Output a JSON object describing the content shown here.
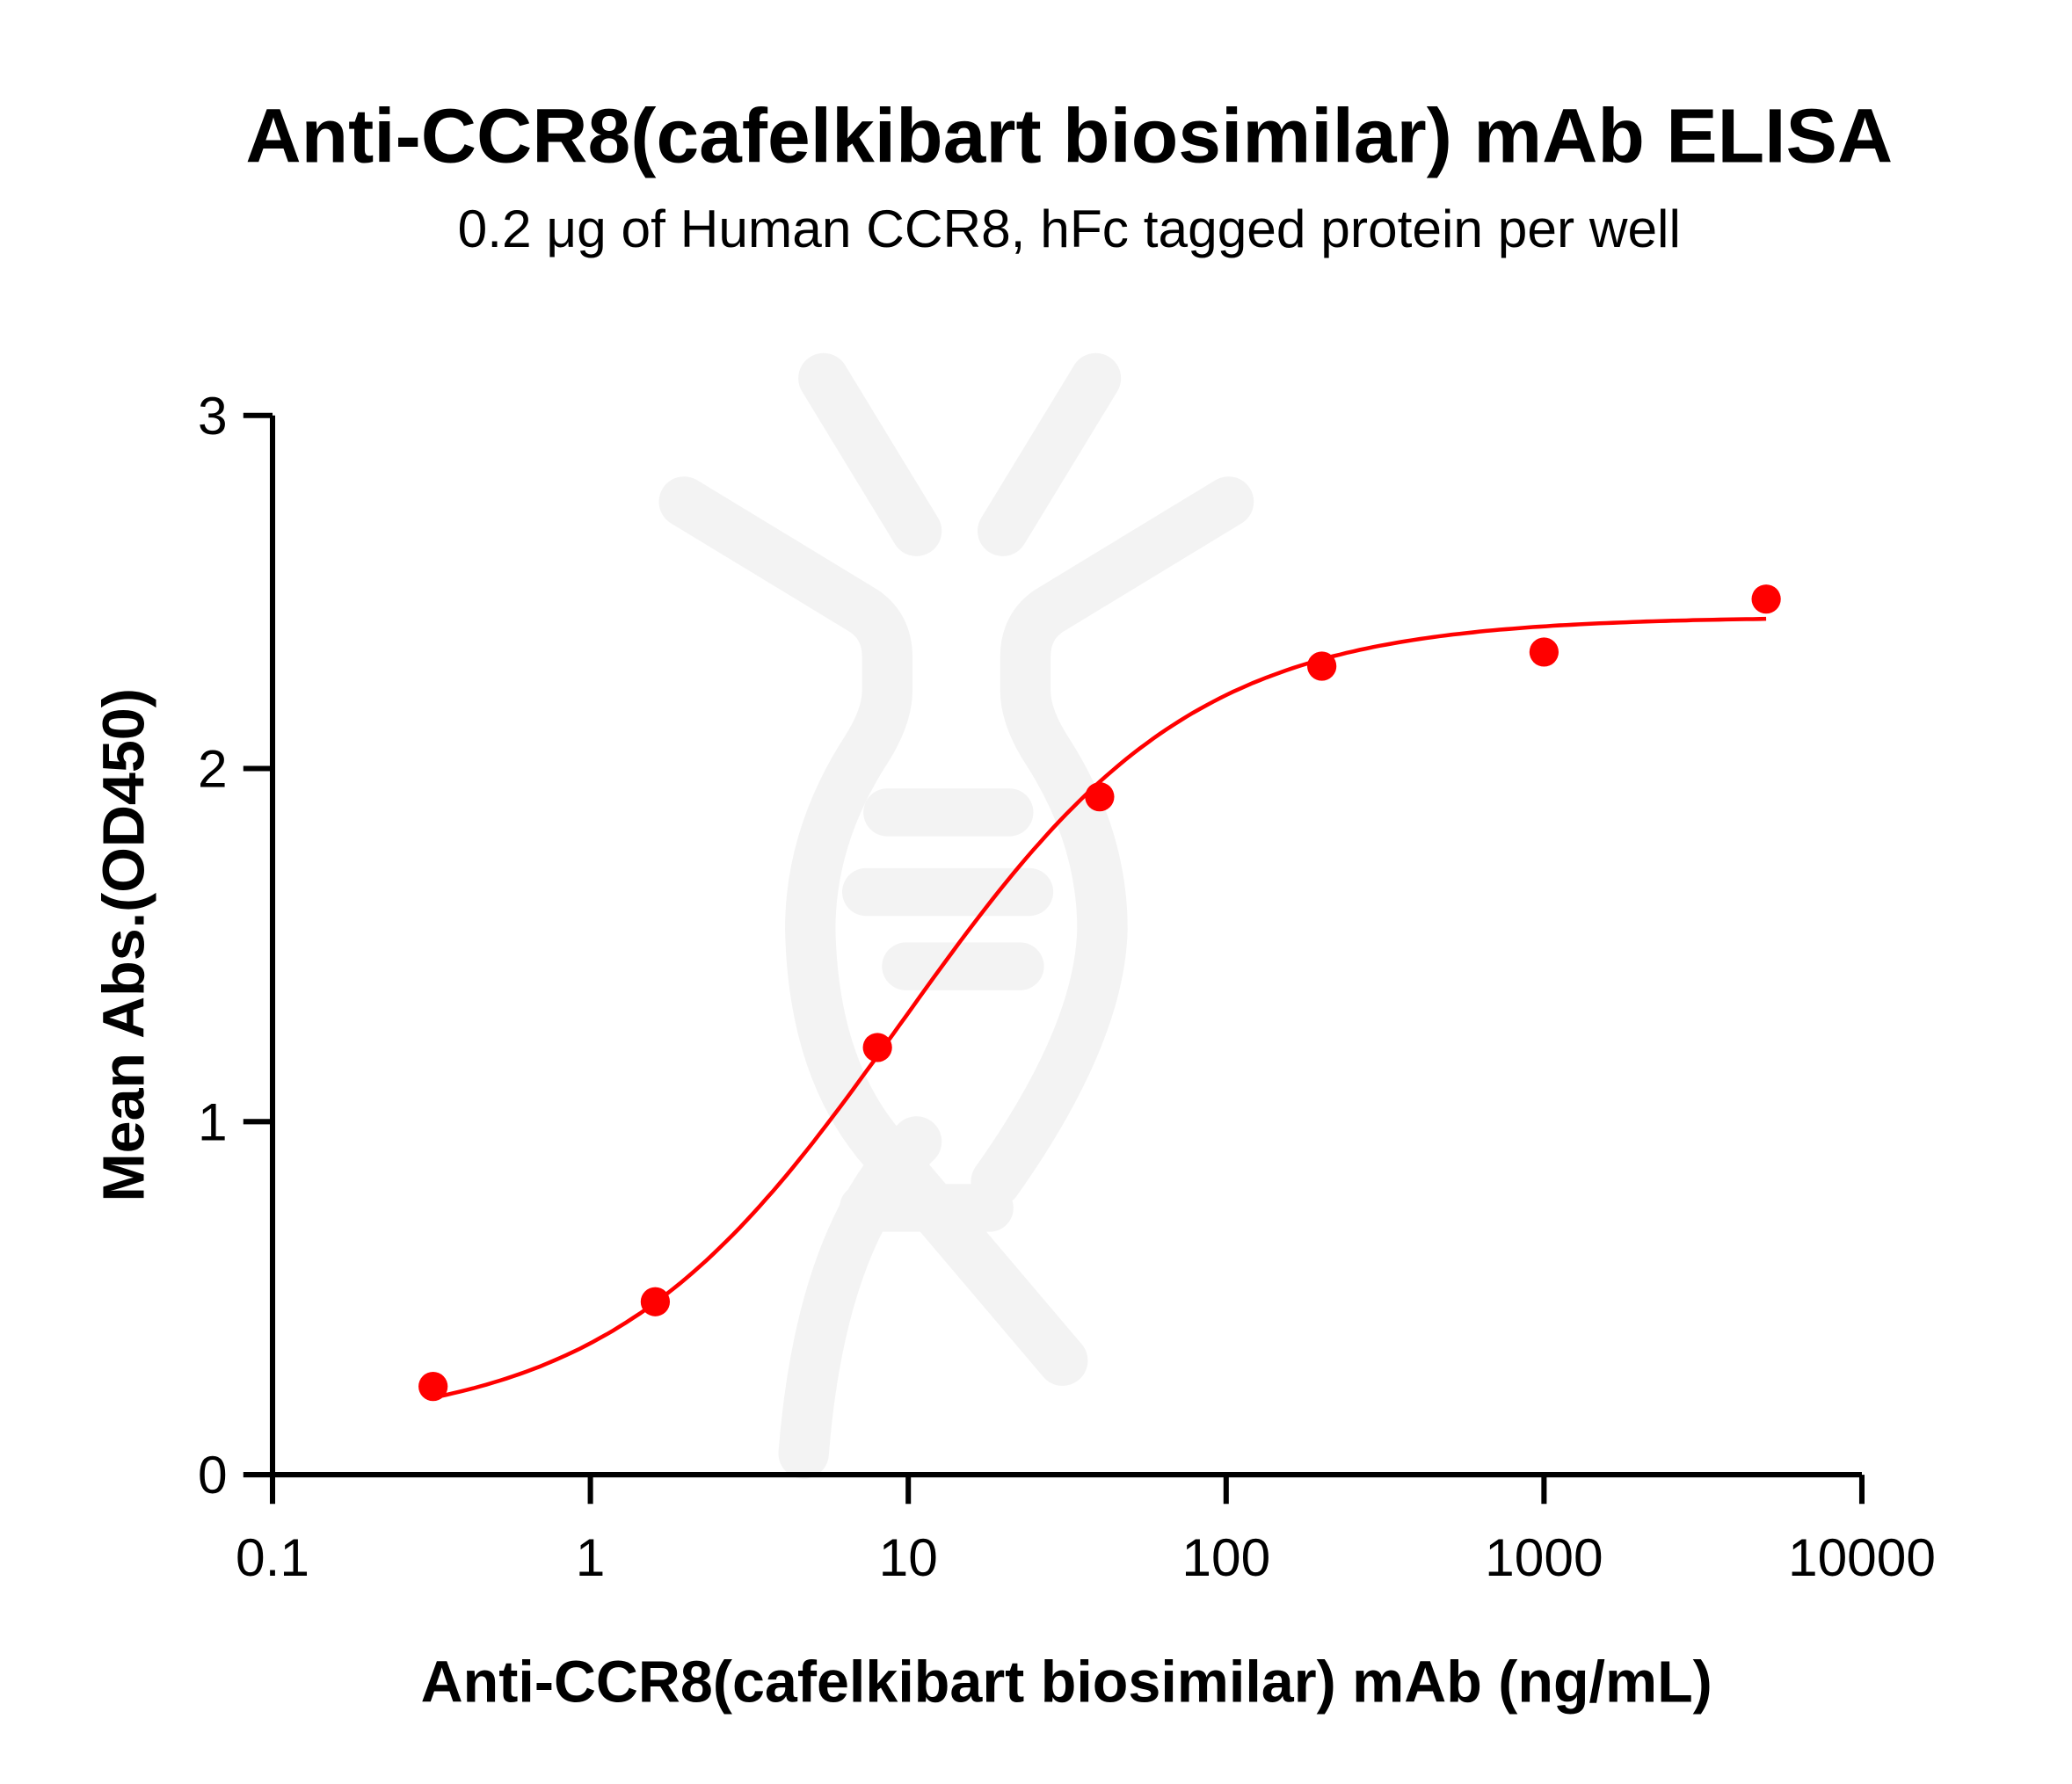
{
  "chart_data": {
    "type": "scatter",
    "title": "Anti-CCR8(cafelkibart biosimilar) mAb ELISA",
    "subtitle": "0.2 μg of Human CCR8, hFc tagged protein per well",
    "xlabel": "Anti-CCR8(cafelkibart biosimilar) mAb (ng/mL)",
    "ylabel": "Mean Abs.(OD450)",
    "xscale": "log",
    "xlim": [
      0.1,
      10000
    ],
    "ylim": [
      0,
      3
    ],
    "xticks": [
      "0.1",
      "1",
      "10",
      "100",
      "1000",
      "10000"
    ],
    "yticks": [
      "0",
      "1",
      "2",
      "3"
    ],
    "grid": false,
    "fit_curve": "sigmoidal (4PL), red line",
    "series": [
      {
        "color": "#ff0000",
        "x": [
          0.32,
          1.6,
          8,
          40,
          200,
          1000,
          5000
        ],
        "y": [
          0.25,
          0.49,
          1.21,
          1.92,
          2.29,
          2.33,
          2.48
        ]
      }
    ]
  }
}
